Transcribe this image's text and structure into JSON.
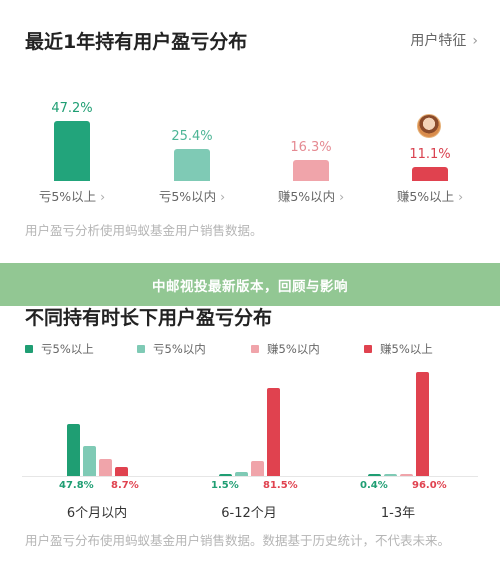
{
  "section1": {
    "title": "最近1年持有用户盈亏分布",
    "feature_link": "用户特征",
    "bars": [
      {
        "percent": "47.2%",
        "label": "亏5%以上",
        "value": 47.2,
        "color": "#1f9e73",
        "bar_color": "#22a47b"
      },
      {
        "percent": "25.4%",
        "label": "亏5%以内",
        "value": 25.4,
        "color": "#4db596",
        "bar_color": "#7fcab5"
      },
      {
        "percent": "16.3%",
        "label": "赚5%以内",
        "value": 16.3,
        "color": "#e58a92",
        "bar_color": "#f0a4aa"
      },
      {
        "percent": "11.1%",
        "label": "赚5%以上",
        "value": 11.1,
        "color": "#d9414f",
        "bar_color": "#e0424f"
      }
    ],
    "source": "用户盈亏分析使用蚂蚁基金用户销售数据。"
  },
  "banner": {
    "text": "中邮视投最新版本，回顾与影响"
  },
  "section2": {
    "title": "不同持有时长下用户盈亏分布",
    "legend": [
      {
        "label": "亏5%以上",
        "color": "#1f9e73"
      },
      {
        "label": "亏5%以内",
        "color": "#7fcab5"
      },
      {
        "label": "赚5%以内",
        "color": "#f0a4aa"
      },
      {
        "label": "赚5%以上",
        "color": "#e0424f"
      }
    ],
    "chart_data": {
      "type": "bar",
      "categories": [
        "6个月以内",
        "6-12个月",
        "1-3年"
      ],
      "series": [
        {
          "name": "亏5%以上",
          "values": [
            47.8,
            1.5,
            0.4
          ]
        },
        {
          "name": "亏5%以内",
          "values": [
            28.0,
            3.5,
            1.5
          ]
        },
        {
          "name": "赚5%以内",
          "values": [
            15.5,
            13.5,
            2.1
          ]
        },
        {
          "name": "赚5%以上",
          "values": [
            8.7,
            81.5,
            96.0
          ]
        }
      ],
      "data_labels": [
        {
          "left": "47.8%",
          "right": "8.7%"
        },
        {
          "left": "1.5%",
          "right": "81.5%"
        },
        {
          "left": "0.4%",
          "right": "96.0%"
        }
      ],
      "ylim": [
        0,
        100
      ]
    },
    "source": "用户盈亏分布使用蚂蚁基金用户销售数据。数据基于历史统计，不代表未来。"
  }
}
